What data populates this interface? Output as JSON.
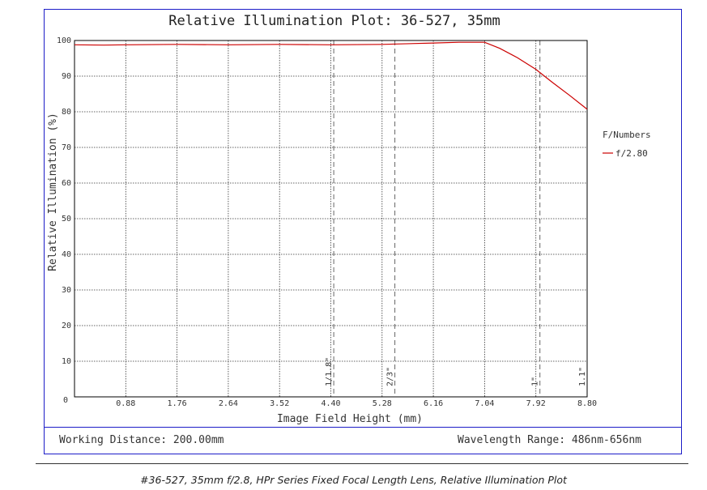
{
  "chart_data": {
    "type": "line",
    "title": "Relative Illumination Plot: 36-527, 35mm",
    "xlabel": "Image Field Height (mm)",
    "ylabel": "Relative Illumination (%)",
    "xlim": [
      0,
      8.8
    ],
    "ylim": [
      0,
      100
    ],
    "x_ticks": [
      "0.88",
      "1.76",
      "2.64",
      "3.52",
      "4.40",
      "5.28",
      "6.16",
      "7.04",
      "7.92",
      "8.80"
    ],
    "y_ticks": [
      "10",
      "20",
      "30",
      "40",
      "50",
      "60",
      "70",
      "80",
      "90",
      "100"
    ],
    "origin_label": "0",
    "grid": true,
    "legend_title": "F/Numbers",
    "legend_position": "right",
    "series": [
      {
        "name": "f/2.80",
        "color": "#cc0000",
        "x": [
          0,
          0.5,
          0.88,
          1.76,
          2.64,
          3.52,
          4.4,
          5.28,
          6.16,
          6.6,
          7.04,
          7.3,
          7.6,
          7.92,
          8.2,
          8.5,
          8.8
        ],
        "y": [
          98.8,
          98.7,
          98.8,
          98.9,
          98.8,
          98.9,
          98.8,
          98.9,
          99.3,
          99.5,
          99.5,
          97.8,
          95.2,
          91.9,
          88.3,
          84.6,
          80.7
        ]
      }
    ],
    "sensor_markers": [
      {
        "label": "1/1.8\"",
        "x": 4.45
      },
      {
        "label": "2/3\"",
        "x": 5.5
      },
      {
        "label": "1\"",
        "x": 7.99
      },
      {
        "label": "1.1\"",
        "x": 8.8
      }
    ]
  },
  "info": {
    "working_distance": "Working Distance: 200.00mm",
    "wavelength_range": "Wavelength Range: 486nm-656nm"
  },
  "caption": "#36-527, 35mm f/2.8, HPr Series Fixed Focal Length Lens, Relative Illumination Plot"
}
